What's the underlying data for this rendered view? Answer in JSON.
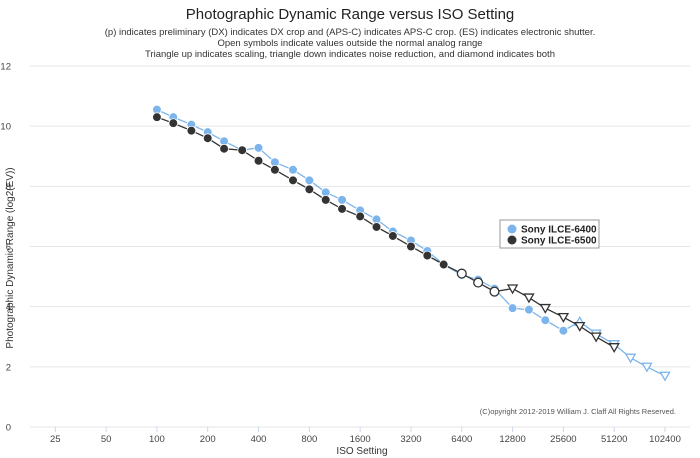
{
  "colors": {
    "series_a": "#7cb5ec",
    "series_b": "#333333",
    "grid": "#e6e6e6",
    "open_fill": "#ffffff"
  },
  "chart_data": {
    "type": "line",
    "title": "Photographic Dynamic Range versus ISO Setting",
    "subtitle": [
      "(p) indicates preliminary (DX) indicates DX crop and (APS-C) indicates APS-C crop. (ES) indicates electronic shutter.",
      "Open symbols indicate values outside the normal analog range",
      "Triangle up indicates scaling, triangle down indicates noise reduction, and diamond indicates both"
    ],
    "xlabel": "ISO Setting",
    "ylabel": "Photographic Dynamic Range (log2(EV))",
    "x_scale": "log2",
    "x_ticks": [
      25,
      50,
      100,
      200,
      400,
      800,
      1600,
      3200,
      6400,
      12800,
      25600,
      51200,
      102400
    ],
    "x_tick_labels": [
      "25",
      "50",
      "100",
      "200",
      "400",
      "800",
      "1600",
      "3200",
      "6400",
      "12800",
      "25600",
      "51200",
      "102400"
    ],
    "xlim": [
      17.7,
      144000
    ],
    "y_ticks": [
      0,
      2,
      4,
      6,
      8,
      10,
      12
    ],
    "ylim": [
      0,
      12
    ],
    "grid": "horizontal",
    "legend_position": "center-right",
    "credit": "(C)opyright 2012-2019 William J. Claff All Rights Reserved.",
    "series": [
      {
        "name": "Sony ILCE-6400",
        "color": "#7cb5ec",
        "points": [
          {
            "x": 100,
            "y": 10.55,
            "marker": "circle"
          },
          {
            "x": 125,
            "y": 10.3,
            "marker": "circle"
          },
          {
            "x": 160,
            "y": 10.05,
            "marker": "circle"
          },
          {
            "x": 200,
            "y": 9.8,
            "marker": "circle"
          },
          {
            "x": 250,
            "y": 9.5,
            "marker": "circle"
          },
          {
            "x": 320,
            "y": 9.2,
            "marker": "circle"
          },
          {
            "x": 400,
            "y": 9.28,
            "marker": "circle"
          },
          {
            "x": 500,
            "y": 8.8,
            "marker": "circle"
          },
          {
            "x": 640,
            "y": 8.55,
            "marker": "circle"
          },
          {
            "x": 800,
            "y": 8.2,
            "marker": "circle"
          },
          {
            "x": 1000,
            "y": 7.8,
            "marker": "circle"
          },
          {
            "x": 1250,
            "y": 7.55,
            "marker": "circle"
          },
          {
            "x": 1600,
            "y": 7.2,
            "marker": "circle"
          },
          {
            "x": 2000,
            "y": 6.9,
            "marker": "circle"
          },
          {
            "x": 2500,
            "y": 6.5,
            "marker": "circle"
          },
          {
            "x": 3200,
            "y": 6.2,
            "marker": "circle"
          },
          {
            "x": 4000,
            "y": 5.85,
            "marker": "circle"
          },
          {
            "x": 5000,
            "y": 5.4,
            "marker": "circle"
          },
          {
            "x": 6400,
            "y": 5.05,
            "marker": "circle"
          },
          {
            "x": 8000,
            "y": 4.9,
            "marker": "circle"
          },
          {
            "x": 10000,
            "y": 4.6,
            "marker": "circle"
          },
          {
            "x": 12800,
            "y": 3.95,
            "marker": "circle"
          },
          {
            "x": 16000,
            "y": 3.9,
            "marker": "circle"
          },
          {
            "x": 20000,
            "y": 3.55,
            "marker": "circle"
          },
          {
            "x": 25600,
            "y": 3.2,
            "marker": "circle"
          },
          {
            "x": 32000,
            "y": 3.5,
            "marker": "triangle-up-open"
          },
          {
            "x": 40000,
            "y": 3.1,
            "marker": "triangle-down-open"
          },
          {
            "x": 51200,
            "y": 2.75,
            "marker": "triangle-down-open"
          },
          {
            "x": 64000,
            "y": 2.3,
            "marker": "triangle-down-open"
          },
          {
            "x": 80000,
            "y": 2.0,
            "marker": "triangle-down-open"
          },
          {
            "x": 102400,
            "y": 1.7,
            "marker": "triangle-down-open"
          }
        ]
      },
      {
        "name": "Sony ILCE-6500",
        "color": "#333333",
        "points": [
          {
            "x": 100,
            "y": 10.3,
            "marker": "circle"
          },
          {
            "x": 125,
            "y": 10.1,
            "marker": "circle"
          },
          {
            "x": 160,
            "y": 9.85,
            "marker": "circle"
          },
          {
            "x": 200,
            "y": 9.6,
            "marker": "circle"
          },
          {
            "x": 250,
            "y": 9.25,
            "marker": "circle"
          },
          {
            "x": 320,
            "y": 9.2,
            "marker": "circle"
          },
          {
            "x": 400,
            "y": 8.85,
            "marker": "circle"
          },
          {
            "x": 500,
            "y": 8.55,
            "marker": "circle"
          },
          {
            "x": 640,
            "y": 8.2,
            "marker": "circle"
          },
          {
            "x": 800,
            "y": 7.9,
            "marker": "circle"
          },
          {
            "x": 1000,
            "y": 7.55,
            "marker": "circle"
          },
          {
            "x": 1250,
            "y": 7.25,
            "marker": "circle"
          },
          {
            "x": 1600,
            "y": 7.0,
            "marker": "circle"
          },
          {
            "x": 2000,
            "y": 6.65,
            "marker": "circle"
          },
          {
            "x": 2500,
            "y": 6.35,
            "marker": "circle"
          },
          {
            "x": 3200,
            "y": 6.0,
            "marker": "circle"
          },
          {
            "x": 4000,
            "y": 5.7,
            "marker": "circle"
          },
          {
            "x": 5000,
            "y": 5.4,
            "marker": "circle"
          },
          {
            "x": 6400,
            "y": 5.1,
            "marker": "circle-open"
          },
          {
            "x": 8000,
            "y": 4.8,
            "marker": "circle-open"
          },
          {
            "x": 10000,
            "y": 4.5,
            "marker": "circle-open"
          },
          {
            "x": 12800,
            "y": 4.6,
            "marker": "triangle-down-open"
          },
          {
            "x": 16000,
            "y": 4.3,
            "marker": "triangle-down-open"
          },
          {
            "x": 20000,
            "y": 3.95,
            "marker": "triangle-down-open"
          },
          {
            "x": 25600,
            "y": 3.65,
            "marker": "triangle-down-open"
          },
          {
            "x": 32000,
            "y": 3.35,
            "marker": "triangle-down-open"
          },
          {
            "x": 40000,
            "y": 3.0,
            "marker": "triangle-down-open"
          },
          {
            "x": 51200,
            "y": 2.65,
            "marker": "triangle-down-open"
          }
        ]
      }
    ]
  }
}
